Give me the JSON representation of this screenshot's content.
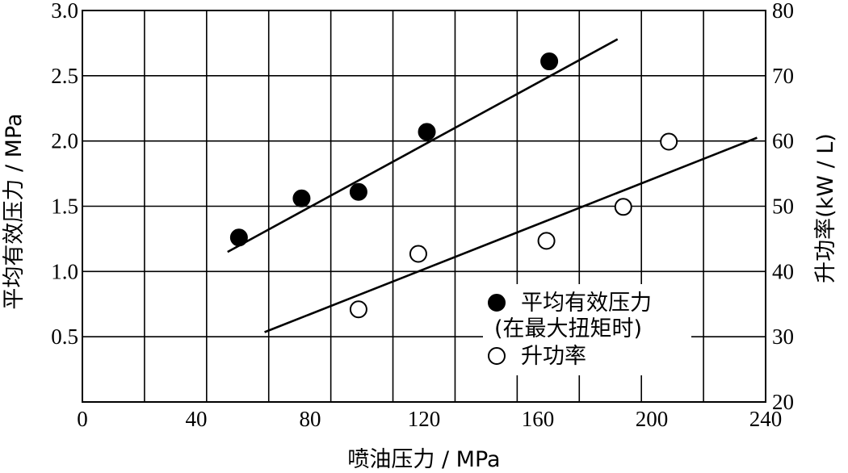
{
  "chart_data": {
    "type": "scatter",
    "xlabel": "喷油压力 / MPa",
    "ylabel_left": "平均有效压力 / MPa",
    "ylabel_right": "升功率(kW / L)",
    "xlim": [
      0,
      240
    ],
    "ylim_left": [
      0,
      3.0
    ],
    "ylim_right": [
      20,
      80
    ],
    "x_ticks": [
      "0",
      "40",
      "80",
      "120",
      "160",
      "200",
      "240"
    ],
    "y_left_ticks": [
      "0.5",
      "1.0",
      "1.5",
      "2.0",
      "2.5",
      "3.0"
    ],
    "y_right_ticks": [
      "20",
      "30",
      "40",
      "50",
      "60",
      "70",
      "80"
    ],
    "grid": true,
    "legend_position": "lower-right",
    "series": [
      {
        "name_line1": "平均有效压力",
        "name_line2": "(在最大扭矩时)",
        "axis": "left",
        "marker": "filled-circle",
        "points": [
          [
            55,
            1.26
          ],
          [
            77,
            1.56
          ],
          [
            97,
            1.61
          ],
          [
            121,
            2.07
          ],
          [
            164,
            2.61
          ]
        ],
        "trend": [
          [
            51,
            1.15
          ],
          [
            188,
            2.78
          ]
        ]
      },
      {
        "name": "升功率",
        "axis": "right",
        "marker": "open-circle",
        "points": [
          [
            97,
            34.2
          ],
          [
            118,
            42.7
          ],
          [
            163,
            44.7
          ],
          [
            190,
            49.9
          ],
          [
            206,
            59.9
          ]
        ],
        "trend": [
          [
            64,
            30.7
          ],
          [
            237,
            60.5
          ]
        ]
      }
    ]
  }
}
